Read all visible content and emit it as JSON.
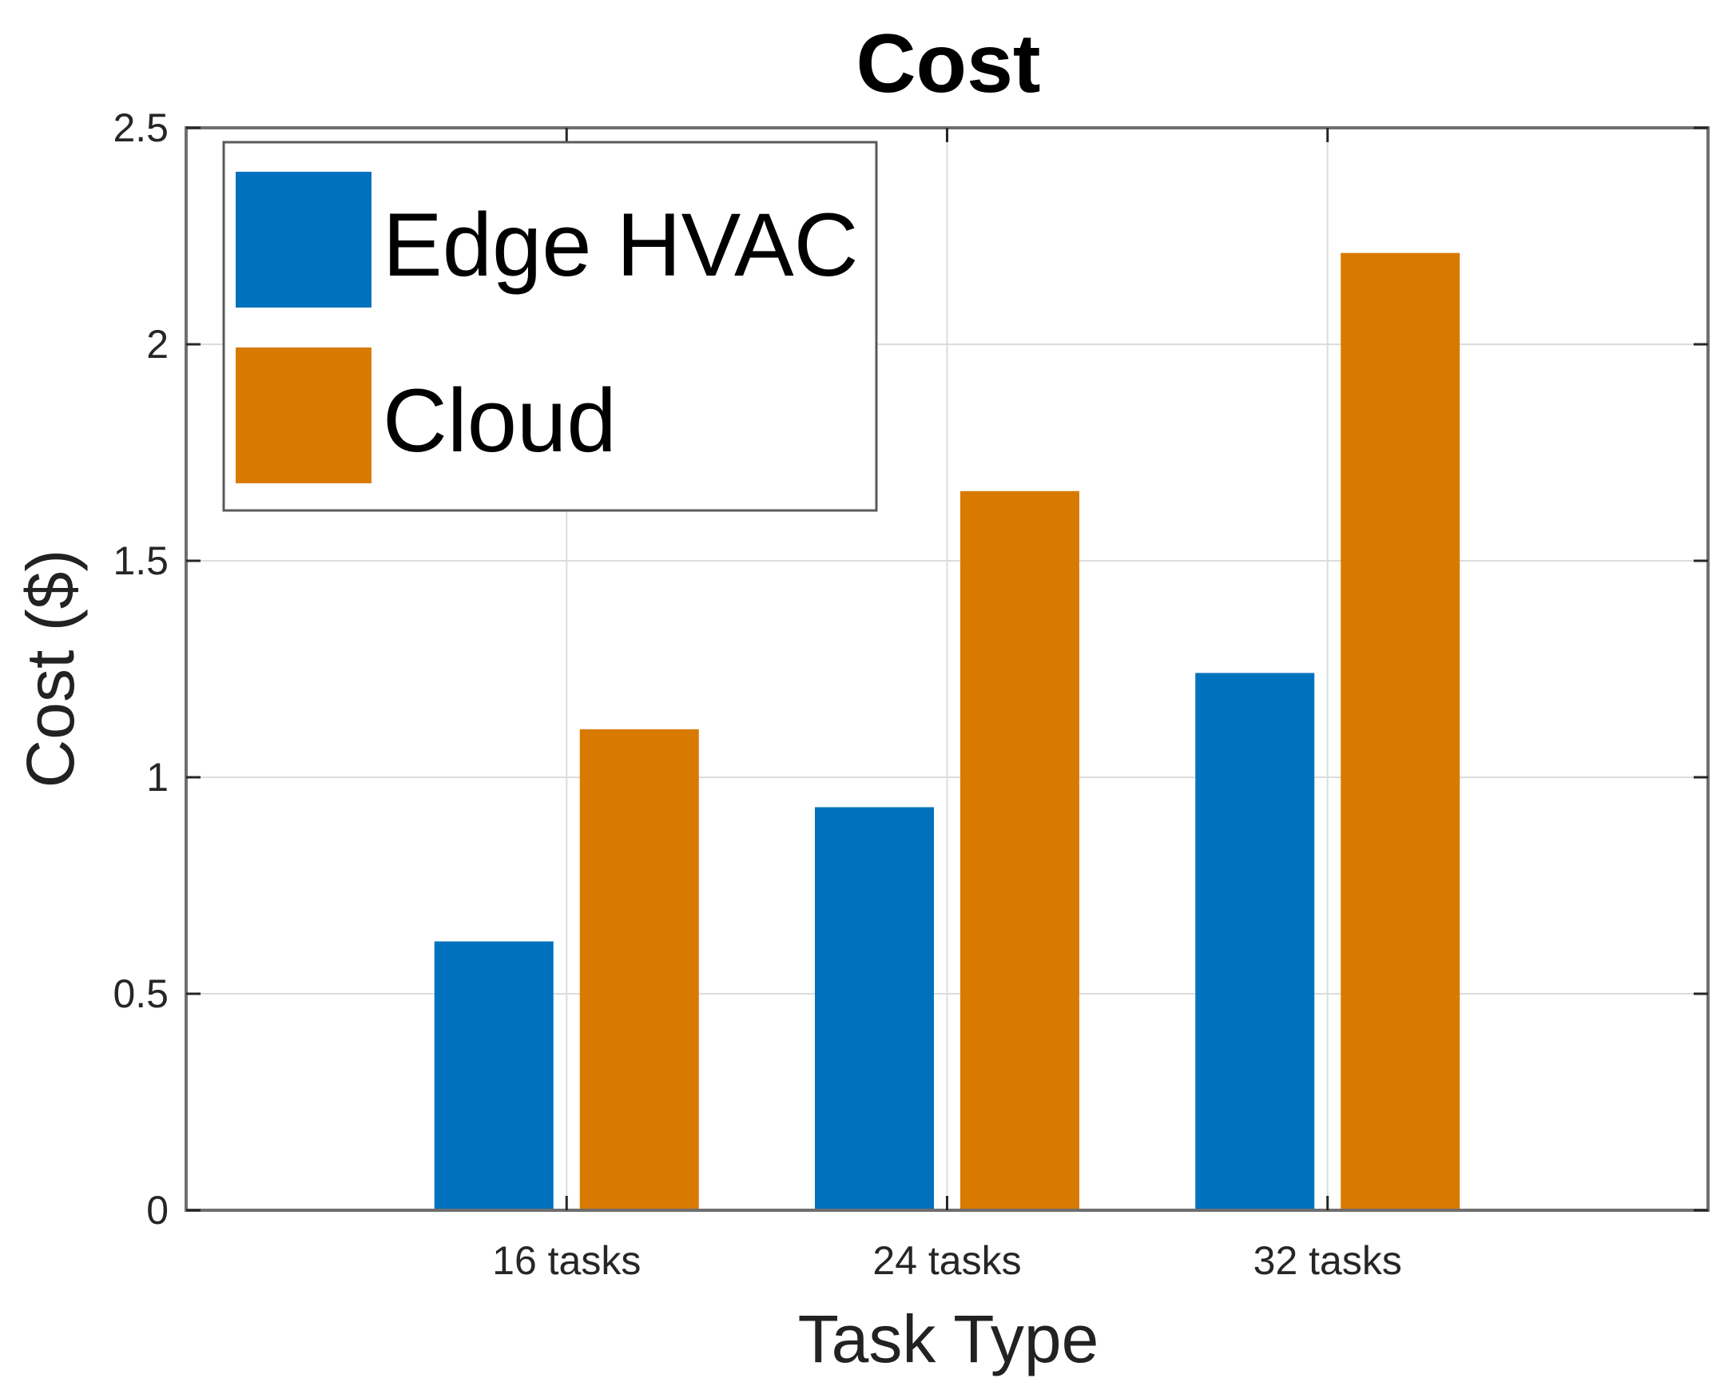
{
  "chart_data": {
    "type": "bar",
    "title": "Cost",
    "xlabel": "Task Type",
    "ylabel": "Cost ($)",
    "categories": [
      "16 tasks",
      "24 tasks",
      "32 tasks"
    ],
    "series": [
      {
        "name": "Edge HVAC",
        "color": "#0072bd",
        "values": [
          0.62,
          0.93,
          1.24
        ]
      },
      {
        "name": "Cloud",
        "color": "#d97a00",
        "values": [
          1.11,
          1.66,
          2.21
        ]
      }
    ],
    "ylim": [
      0,
      2.5
    ],
    "yticks": [
      0,
      0.5,
      1,
      1.5,
      2,
      2.5
    ],
    "ytick_labels": [
      "0",
      "0.5",
      "1",
      "1.5",
      "2",
      "2.5"
    ],
    "grid": true,
    "legend_position": "top-left"
  }
}
